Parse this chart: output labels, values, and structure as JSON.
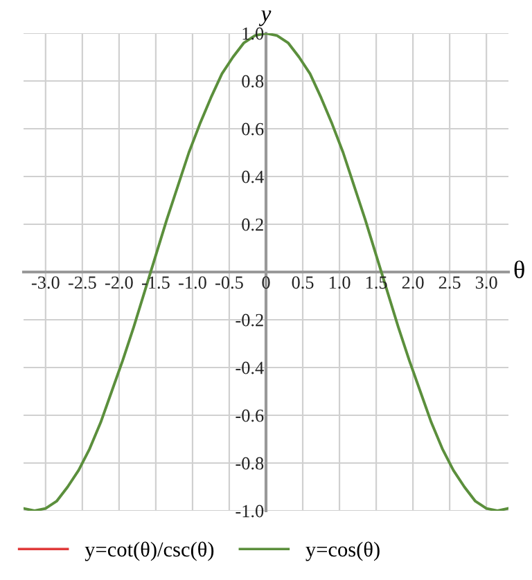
{
  "chart_data": {
    "type": "line",
    "xlabel": "θ",
    "ylabel": "y",
    "x": [
      -3.3,
      -3.15,
      -3.0,
      -2.85,
      -2.7,
      -2.55,
      -2.4,
      -2.25,
      -2.1,
      -1.95,
      -1.8,
      -1.65,
      -1.5,
      -1.35,
      -1.2,
      -1.05,
      -0.9,
      -0.75,
      -0.6,
      -0.45,
      -0.3,
      -0.15,
      0,
      0.15,
      0.3,
      0.45,
      0.6,
      0.75,
      0.9,
      1.05,
      1.2,
      1.35,
      1.5,
      1.65,
      1.8,
      1.95,
      2.1,
      2.25,
      2.4,
      2.55,
      2.7,
      2.85,
      3.0,
      3.15,
      3.3
    ],
    "series": [
      {
        "name": "y=cot(θ)/csc(θ)",
        "color": "#e03a3a",
        "values": [
          null,
          null,
          null,
          null,
          null,
          null,
          null,
          null,
          null,
          null,
          null,
          null,
          null,
          null,
          null,
          null,
          null,
          null,
          null,
          null,
          null,
          null,
          null,
          null,
          null,
          null,
          null,
          null,
          null,
          null,
          null,
          null,
          null,
          null,
          null,
          null,
          null,
          null,
          null,
          null,
          null,
          null,
          null,
          null,
          null
        ]
      },
      {
        "name": "y=cos(θ)",
        "color": "#5b8f3c",
        "values": [
          -0.99,
          -1.0,
          -0.99,
          -0.96,
          -0.9,
          -0.83,
          -0.74,
          -0.63,
          -0.5,
          -0.37,
          -0.23,
          -0.08,
          0.07,
          0.22,
          0.36,
          0.5,
          0.62,
          0.73,
          0.83,
          0.9,
          0.96,
          0.99,
          1.0,
          0.99,
          0.96,
          0.9,
          0.83,
          0.73,
          0.62,
          0.5,
          0.36,
          0.22,
          0.07,
          -0.08,
          -0.23,
          -0.37,
          -0.5,
          -0.63,
          -0.74,
          -0.83,
          -0.9,
          -0.96,
          -0.99,
          -1.0,
          -0.99
        ]
      }
    ],
    "xlim": [
      -3.3,
      3.3
    ],
    "ylim": [
      -1.0,
      1.0
    ],
    "xticks": [
      {
        "value": -3,
        "label": "-3.0"
      },
      -2.5,
      {
        "value": -2,
        "label": "-2.0"
      },
      -1.5,
      {
        "value": -1,
        "label": "-1.0"
      },
      -0.5,
      {
        "value": 0,
        "label": "0"
      },
      0.5,
      {
        "value": 1,
        "label": "1.0"
      },
      1.5,
      {
        "value": 2,
        "label": "2.0"
      },
      2.5,
      {
        "value": 3,
        "label": "3.0"
      }
    ],
    "yticks": [
      {
        "value": -1,
        "label": "-1.0"
      },
      -0.8,
      -0.6,
      -0.4,
      -0.2,
      0.2,
      0.4,
      0.6,
      0.8,
      {
        "value": 1,
        "label": "1.0"
      }
    ],
    "grid": true,
    "legend": "bottom",
    "line_style": "solid"
  }
}
